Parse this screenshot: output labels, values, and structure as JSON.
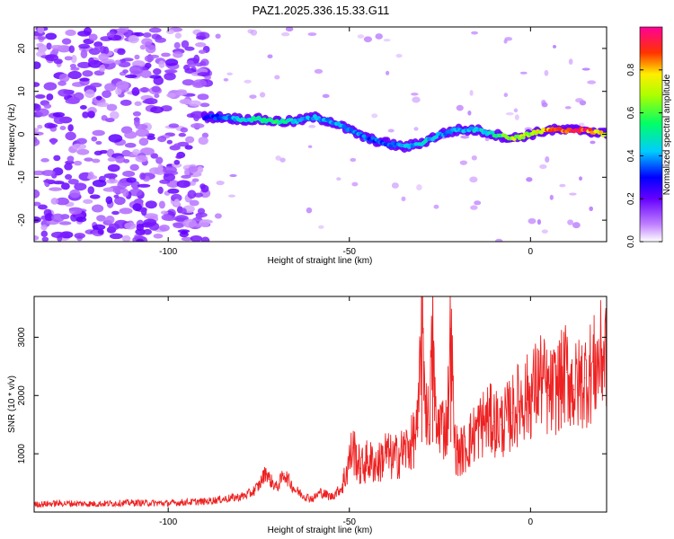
{
  "title": "PAZ1.2025.336.15.33.G11",
  "chart_data": [
    {
      "type": "heatmap",
      "name": "spectrogram",
      "xlabel": "Height of straight line (km)",
      "ylabel": "Frequency (Hz)",
      "xlim": [
        -137,
        21
      ],
      "ylim": [
        -25,
        25
      ],
      "xticks": [
        -100,
        -50,
        0
      ],
      "yticks": [
        -20,
        -10,
        0,
        10,
        20
      ],
      "xtick_labels": [
        "-100",
        "-50",
        "0"
      ],
      "ytick_labels": [
        "-20",
        "-10",
        "0",
        "10",
        "20"
      ],
      "colorbar": {
        "label": "Normalized spectral amplitude",
        "range": [
          0,
          1
        ],
        "ticks": [
          0.0,
          0.2,
          0.4,
          0.6,
          0.8
        ],
        "tick_labels": [
          "0.0",
          "0.2",
          "0.4",
          "0.6",
          "0.8"
        ],
        "colormap": [
          "#ffffff",
          "#8800ff",
          "#0000ff",
          "#00ffff",
          "#00ff00",
          "#ffff00",
          "#ff0000",
          "#ff0066"
        ]
      },
      "ridge": {
        "description_note": "dominant frequency track (Hz) vs height (km)",
        "x": [
          -90,
          -85,
          -80,
          -75,
          -70,
          -65,
          -60,
          -55,
          -50,
          -45,
          -40,
          -35,
          -30,
          -25,
          -20,
          -15,
          -10,
          -5,
          0,
          5,
          10,
          15,
          21
        ],
        "y": [
          4,
          4,
          3.5,
          3.5,
          3,
          3,
          4,
          3,
          1,
          -1,
          -2,
          -3,
          -2,
          0,
          1,
          1,
          0,
          -1,
          0,
          1,
          1,
          1,
          0
        ],
        "amplitude": [
          0.3,
          0.35,
          0.45,
          0.5,
          0.55,
          0.45,
          0.4,
          0.4,
          0.4,
          0.35,
          0.35,
          0.4,
          0.45,
          0.4,
          0.4,
          0.45,
          0.5,
          0.7,
          0.7,
          0.85,
          0.9,
          0.9,
          0.7
        ]
      }
    },
    {
      "type": "line",
      "name": "snr",
      "xlabel": "Height of straight line (km)",
      "ylabel": "SNR (10 * v/v)",
      "xlim": [
        -137,
        21
      ],
      "ylim": [
        0,
        3700
      ],
      "xticks": [
        -100,
        -50,
        0
      ],
      "yticks": [
        1000,
        2000,
        3000
      ],
      "xtick_labels": [
        "-100",
        "-50",
        "0"
      ],
      "ytick_labels": [
        "1000",
        "2000",
        "3000"
      ],
      "series": [
        {
          "name": "SNR",
          "color": "#ee2222",
          "x": [
            -137,
            -130,
            -120,
            -110,
            -100,
            -95,
            -90,
            -85,
            -80,
            -77,
            -75,
            -73,
            -72,
            -70,
            -68,
            -65,
            -62,
            -60,
            -58,
            -55,
            -52,
            -50,
            -49,
            -47,
            -45,
            -42,
            -40,
            -38,
            -35,
            -33,
            -31,
            -30,
            -29,
            -28,
            -27,
            -26,
            -25,
            -24,
            -23,
            -22,
            -21,
            -20,
            -18,
            -15,
            -12,
            -10,
            -8,
            -5,
            -3,
            0,
            3,
            5,
            8,
            10,
            12,
            15,
            18,
            21
          ],
          "y": [
            130,
            150,
            140,
            160,
            150,
            170,
            180,
            220,
            260,
            330,
            450,
            700,
            560,
            420,
            660,
            380,
            260,
            230,
            340,
            260,
            420,
            900,
            1100,
            750,
            880,
            820,
            1020,
            900,
            1050,
            1150,
            1450,
            3700,
            1900,
            1500,
            3000,
            1300,
            1600,
            1450,
            1500,
            3150,
            1200,
            1000,
            1100,
            1400,
            1600,
            1550,
            1500,
            1700,
            1900,
            2000,
            2300,
            2000,
            2200,
            2400,
            2100,
            2300,
            2500,
            2800
          ]
        }
      ]
    }
  ]
}
